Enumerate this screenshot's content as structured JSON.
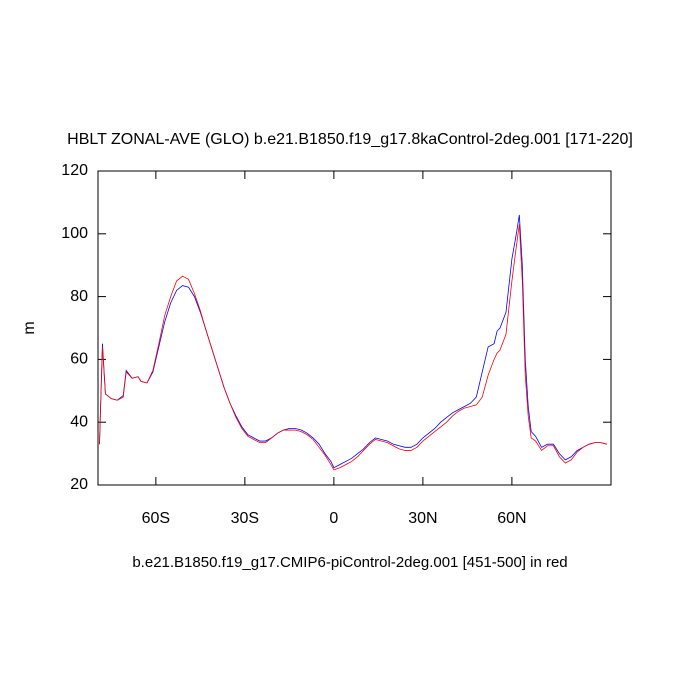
{
  "chart_data": {
    "type": "line",
    "title": "HBLT ZONAL-AVE (GLO) b.e21.B1850.f19_g17.8kaControl-2deg.001 [171-220]",
    "ylabel": "m",
    "xlabel": "b.e21.B1850.f19_g17.CMIP6-piControl-2deg.001 [451-500] in red",
    "x": [
      -79,
      -78,
      -77,
      -75,
      -73,
      -71,
      -70,
      -68,
      -66,
      -65,
      -63,
      -61,
      -59,
      -57,
      -55,
      -53,
      -51,
      -49,
      -47,
      -45,
      -43,
      -41,
      -39,
      -37,
      -35,
      -33,
      -31,
      -29,
      -27,
      -25,
      -23,
      -21,
      -19,
      -17,
      -15,
      -13,
      -11,
      -9,
      -7,
      -5,
      -3,
      -1,
      0,
      2,
      4,
      6,
      8,
      10,
      12,
      14,
      16,
      18,
      20,
      22,
      24,
      26,
      28,
      30,
      32,
      34,
      36,
      38,
      40,
      42,
      44,
      46,
      48,
      50,
      52,
      54,
      55,
      56,
      58,
      60,
      61.5,
      62.5,
      63.5,
      64.5,
      65.5,
      66.5,
      68,
      70,
      72,
      74,
      76,
      78,
      80,
      82,
      84,
      86,
      88,
      90,
      92
    ],
    "series": [
      {
        "color": "#0000ff",
        "values": [
          33,
          65,
          49,
          47.5,
          47,
          48.5,
          56.5,
          54,
          54.5,
          53,
          52.5,
          56,
          64,
          72,
          78,
          82,
          83.5,
          83,
          80,
          75,
          69,
          63,
          57,
          51,
          46,
          42,
          38.5,
          36,
          35,
          34,
          34,
          35,
          36.5,
          37.5,
          38,
          38,
          37.5,
          36.5,
          35,
          33,
          30,
          27.5,
          25.5,
          26.5,
          27.5,
          28.5,
          30,
          31.5,
          33.5,
          35,
          34.5,
          34,
          33,
          32.5,
          32,
          32,
          33,
          35,
          36.5,
          38,
          40,
          41.5,
          43,
          44,
          45,
          46,
          48,
          56,
          64,
          65,
          69,
          70,
          75,
          92,
          100,
          106,
          90,
          60,
          45,
          37,
          35.5,
          32,
          33,
          33,
          30,
          28,
          29,
          31,
          32,
          33,
          33.5,
          33.5,
          33
        ]
      },
      {
        "color": "#ff0000",
        "values": [
          33,
          64,
          49,
          47.5,
          47,
          48,
          56,
          54,
          54.5,
          53,
          52.5,
          56.5,
          65,
          74,
          80,
          85,
          86.5,
          85.5,
          81,
          75.5,
          69,
          63,
          57,
          51,
          46,
          41.5,
          38,
          35.5,
          34.5,
          33.5,
          33.5,
          35,
          36.5,
          37.5,
          37.5,
          37.5,
          37,
          36,
          34.5,
          32,
          29.5,
          26.5,
          24.8,
          25.5,
          26.5,
          27.5,
          29,
          31,
          33,
          34.5,
          34,
          33.5,
          32.5,
          31.5,
          31,
          31,
          32,
          34,
          35.5,
          37,
          38.5,
          40,
          42,
          43.5,
          44.5,
          45,
          45.5,
          48,
          55,
          60,
          62,
          63,
          68,
          85,
          96,
          103,
          85,
          55,
          42,
          35,
          34,
          31,
          32.5,
          32.5,
          29,
          27,
          28,
          30.5,
          32,
          33,
          33.5,
          33.5,
          33
        ]
      }
    ],
    "xlim": [
      -79.5,
      93.4
    ],
    "xticks": [
      {
        "value": -60,
        "label": "60S"
      },
      {
        "value": -30,
        "label": "30S"
      },
      0,
      {
        "value": 30,
        "label": "30N"
      },
      {
        "value": 60,
        "label": "60N"
      }
    ],
    "ylim": [
      20,
      120
    ],
    "yticks": [
      20,
      40,
      60,
      80,
      100,
      120
    ]
  }
}
